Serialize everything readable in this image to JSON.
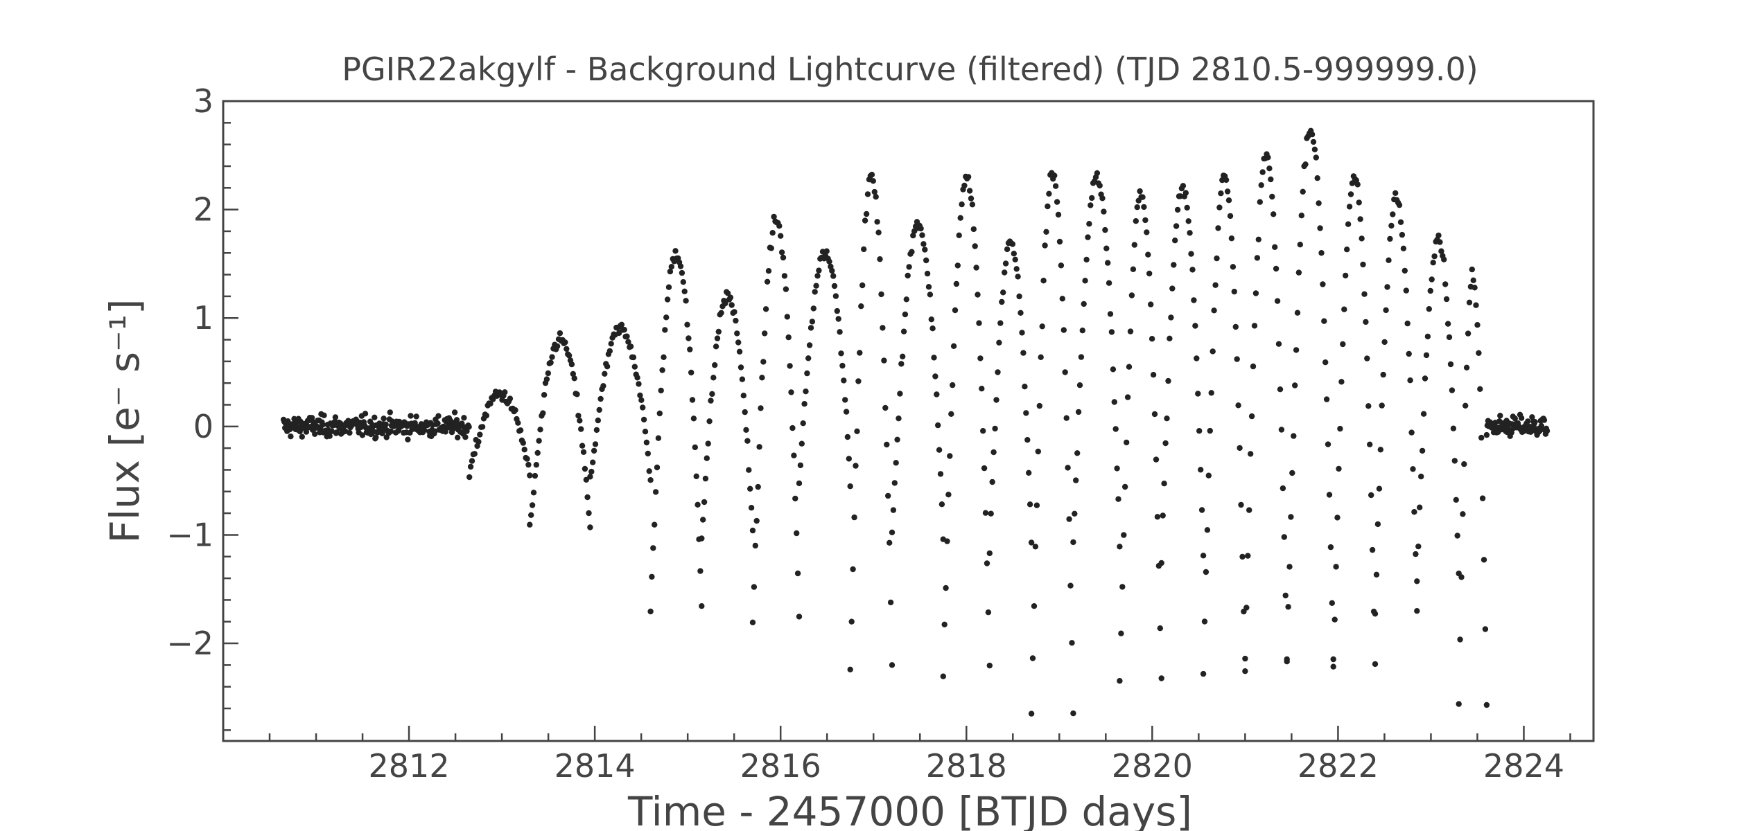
{
  "chart_data": {
    "type": "scatter",
    "title": "PGIR22akgylf - Background Lightcurve (filtered) (TJD 2810.5-999999.0)",
    "xlabel": "Time - 2457000 [BTJD days]",
    "ylabel": "Flux [e⁻ s⁻¹]",
    "xlim": [
      2810.0,
      2824.75
    ],
    "ylim": [
      -2.9,
      3.0
    ],
    "xticks": [
      2812,
      2814,
      2816,
      2818,
      2820,
      2822,
      2824
    ],
    "xtick_labels": [
      "2812",
      "2814",
      "2816",
      "2818",
      "2820",
      "2822",
      "2824"
    ],
    "yticks": [
      -2,
      -1,
      0,
      1,
      2,
      3
    ],
    "ytick_labels": [
      "−2",
      "−1",
      "0",
      "1",
      "2",
      "3"
    ],
    "grid": false,
    "legend": "none",
    "marker_color": "#222222",
    "cadence_days": 0.0139,
    "quiet_intervals": [
      [
        2810.65,
        2812.65
      ],
      [
        2823.6,
        2824.25
      ]
    ],
    "active_interval": [
      2812.65,
      2823.6
    ],
    "series": [
      {
        "segments": [
          {
            "t_start": 2812.65,
            "t_end": 2813.3,
            "flux_max": 0.3,
            "flux_min": -0.45
          },
          {
            "t_start": 2813.3,
            "t_end": 2813.95,
            "flux_max": 0.8,
            "flux_min": -0.95
          },
          {
            "t_start": 2813.95,
            "t_end": 2814.6,
            "flux_max": 0.9,
            "flux_min": -0.5
          },
          {
            "t_start": 2814.6,
            "t_end": 2815.15,
            "flux_max": 1.6,
            "flux_min": -1.65
          },
          {
            "t_start": 2815.15,
            "t_end": 2815.7,
            "flux_max": 1.2,
            "flux_min": -1.0
          },
          {
            "t_start": 2815.7,
            "t_end": 2816.2,
            "flux_max": 1.9,
            "flux_min": -1.8
          },
          {
            "t_start": 2816.2,
            "t_end": 2816.75,
            "flux_max": 1.6,
            "flux_min": -0.5
          },
          {
            "t_start": 2816.75,
            "t_end": 2817.2,
            "flux_max": 2.3,
            "flux_min": -2.2
          },
          {
            "t_start": 2817.2,
            "t_end": 2817.75,
            "flux_max": 1.85,
            "flux_min": -1.0
          },
          {
            "t_start": 2817.75,
            "t_end": 2818.25,
            "flux_max": 2.3,
            "flux_min": -2.25
          },
          {
            "t_start": 2818.25,
            "t_end": 2818.7,
            "flux_max": 1.7,
            "flux_min": -1.1
          },
          {
            "t_start": 2818.7,
            "t_end": 2819.15,
            "flux_max": 2.35,
            "flux_min": -2.65
          },
          {
            "t_start": 2819.15,
            "t_end": 2819.65,
            "flux_max": 2.3,
            "flux_min": -1.1
          },
          {
            "t_start": 2819.65,
            "t_end": 2820.1,
            "flux_max": 2.15,
            "flux_min": -2.35
          },
          {
            "t_start": 2820.1,
            "t_end": 2820.55,
            "flux_max": 2.2,
            "flux_min": -1.2
          },
          {
            "t_start": 2820.55,
            "t_end": 2821.0,
            "flux_max": 2.3,
            "flux_min": -2.25
          },
          {
            "t_start": 2821.0,
            "t_end": 2821.45,
            "flux_max": 2.5,
            "flux_min": -2.15
          },
          {
            "t_start": 2821.45,
            "t_end": 2821.95,
            "flux_max": 2.75,
            "flux_min": -2.15
          },
          {
            "t_start": 2821.95,
            "t_end": 2822.4,
            "flux_max": 2.3,
            "flux_min": -2.2
          },
          {
            "t_start": 2822.4,
            "t_end": 2822.85,
            "flux_max": 2.1,
            "flux_min": -1.7
          },
          {
            "t_start": 2822.85,
            "t_end": 2823.3,
            "flux_max": 1.75,
            "flux_min": -1.4
          },
          {
            "t_start": 2823.3,
            "t_end": 2823.6,
            "flux_max": 1.4,
            "flux_min": -2.55
          }
        ]
      }
    ]
  }
}
